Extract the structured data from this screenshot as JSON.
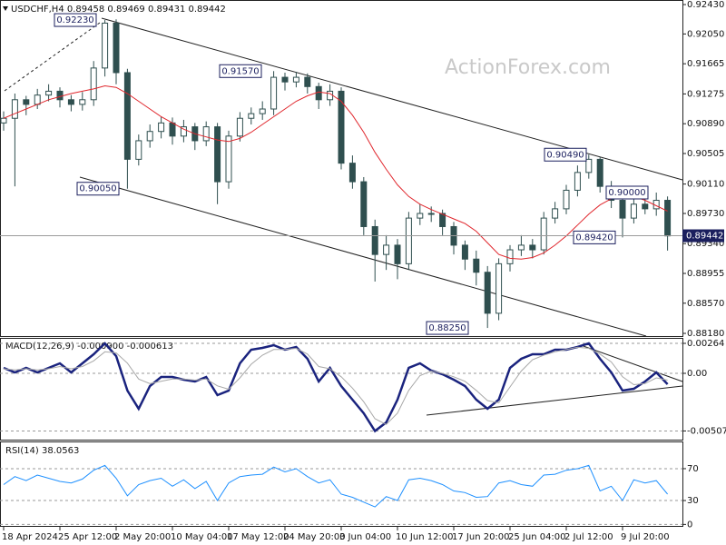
{
  "chart_data": [
    {
      "type": "candlestick",
      "symbol": "USDCHF,H4",
      "header_values": [
        0.89458,
        0.89469,
        0.89431,
        0.89442
      ],
      "watermark": "ActionForex.com",
      "color": "#2f4f4f",
      "open": [
        0.909,
        0.9096,
        0.912,
        0.9114,
        0.9126,
        0.9131,
        0.912,
        0.9114,
        0.912,
        0.9161,
        0.9219,
        0.9155,
        0.9043,
        0.9067,
        0.9079,
        0.909,
        0.9073,
        0.9085,
        0.9067,
        0.9085,
        0.9014,
        0.9073,
        0.9096,
        0.9102,
        0.9108,
        0.9149,
        0.9143,
        0.9149,
        0.9137,
        0.912,
        0.9131,
        0.9038,
        0.9014,
        0.8956,
        0.892,
        0.8932,
        0.8908,
        0.8967,
        0.8973,
        0.8973,
        0.8956,
        0.8932,
        0.8914,
        0.8897,
        0.8844,
        0.8908,
        0.8926,
        0.8932,
        0.8926,
        0.8967,
        0.8979,
        0.9003,
        0.9026,
        0.9043,
        0.9008,
        0.899,
        0.8967,
        0.8985,
        0.8979,
        0.899
      ],
      "high": [
        0.9105,
        0.9128,
        0.9125,
        0.9134,
        0.914,
        0.9136,
        0.9126,
        0.913,
        0.917,
        0.9223,
        0.9224,
        0.916,
        0.9075,
        0.9088,
        0.9098,
        0.9097,
        0.9094,
        0.909,
        0.9092,
        0.909,
        0.908,
        0.9104,
        0.911,
        0.9118,
        0.9157,
        0.9155,
        0.9156,
        0.9154,
        0.9142,
        0.914,
        0.9136,
        0.9048,
        0.902,
        0.8965,
        0.8945,
        0.894,
        0.8975,
        0.8985,
        0.8982,
        0.8978,
        0.8962,
        0.8938,
        0.8925,
        0.8905,
        0.8915,
        0.8932,
        0.8945,
        0.894,
        0.8975,
        0.8988,
        0.901,
        0.9035,
        0.9049,
        0.9046,
        0.9015,
        0.8995,
        0.8992,
        0.8998,
        0.9,
        0.8995
      ],
      "low": [
        0.908,
        0.9008,
        0.91,
        0.9108,
        0.9118,
        0.911,
        0.9105,
        0.9106,
        0.9112,
        0.915,
        0.914,
        0.9005,
        0.9035,
        0.9058,
        0.907,
        0.9062,
        0.9065,
        0.9055,
        0.906,
        0.8985,
        0.9005,
        0.9066,
        0.9088,
        0.9094,
        0.91,
        0.9132,
        0.9136,
        0.9128,
        0.9108,
        0.9112,
        0.903,
        0.9005,
        0.8945,
        0.8885,
        0.89,
        0.8888,
        0.89,
        0.8958,
        0.8962,
        0.8945,
        0.892,
        0.89,
        0.888,
        0.8825,
        0.8835,
        0.8898,
        0.8918,
        0.8915,
        0.892,
        0.896,
        0.8972,
        0.8995,
        0.9018,
        0.9,
        0.898,
        0.8942,
        0.896,
        0.8972,
        0.897,
        0.8925
      ],
      "close": [
        0.9096,
        0.912,
        0.9114,
        0.9126,
        0.9131,
        0.912,
        0.9114,
        0.912,
        0.9161,
        0.9219,
        0.9155,
        0.9043,
        0.9067,
        0.9079,
        0.909,
        0.9073,
        0.9085,
        0.9067,
        0.9085,
        0.9014,
        0.9073,
        0.9096,
        0.9102,
        0.9108,
        0.9149,
        0.9143,
        0.9149,
        0.9137,
        0.912,
        0.9131,
        0.9038,
        0.9014,
        0.8956,
        0.892,
        0.8932,
        0.8908,
        0.8967,
        0.8973,
        0.8973,
        0.8956,
        0.8932,
        0.8914,
        0.8897,
        0.8844,
        0.8908,
        0.8926,
        0.8932,
        0.8926,
        0.8967,
        0.8979,
        0.9003,
        0.9026,
        0.9043,
        0.9008,
        0.899,
        0.8967,
        0.8985,
        0.8979,
        0.899,
        0.8944
      ],
      "ma": {
        "color": "#e0262c",
        "values": [
          0.9096,
          0.9102,
          0.9108,
          0.9114,
          0.912,
          0.9124,
          0.9128,
          0.9131,
          0.9134,
          0.9138,
          0.9136,
          0.9128,
          0.9118,
          0.9108,
          0.9098,
          0.909,
          0.9082,
          0.9076,
          0.9072,
          0.9068,
          0.9066,
          0.907,
          0.9078,
          0.9088,
          0.9098,
          0.9108,
          0.9118,
          0.9125,
          0.913,
          0.9128,
          0.9118,
          0.91,
          0.9078,
          0.9052,
          0.903,
          0.901,
          0.8995,
          0.8985,
          0.8978,
          0.8972,
          0.8966,
          0.896,
          0.895,
          0.8935,
          0.892,
          0.8915,
          0.8914,
          0.8916,
          0.8922,
          0.8932,
          0.8944,
          0.8958,
          0.8972,
          0.8984,
          0.8992,
          0.8996,
          0.8995,
          0.899,
          0.8983,
          0.8976
        ]
      },
      "last_price": 0.89442,
      "levels": [
        {
          "value": 0.9223,
          "label": "0.92230"
        },
        {
          "value": 0.9157,
          "label": "0.91570"
        },
        {
          "value": 0.9005,
          "label": "0.90050"
        },
        {
          "value": 0.9049,
          "label": "0.90490"
        },
        {
          "value": 0.9,
          "label": "0.90000"
        },
        {
          "value": 0.8942,
          "label": "0.89420"
        },
        {
          "value": 0.8825,
          "label": "0.88250"
        }
      ],
      "ylim": [
        0.88145,
        0.92489
      ],
      "yticks": [
        {
          "value": 0.9243,
          "label": "0.92430"
        },
        {
          "value": 0.9205,
          "label": "0.92050"
        },
        0.91665,
        0.91275,
        {
          "value": 0.9089,
          "label": "0.90890"
        },
        0.90505,
        {
          "value": 0.9011,
          "label": "0.90110"
        },
        {
          "value": 0.8973,
          "label": "0.89730"
        },
        {
          "value": 0.8934,
          "label": "0.89340"
        },
        0.88955,
        {
          "value": 0.8857,
          "label": "0.88570"
        },
        {
          "value": 0.8818,
          "label": "0.88180"
        }
      ]
    },
    {
      "type": "line",
      "label": "MACD(12,26,9)",
      "header_values": [
        {
          "value": -0.0009,
          "label": "-0.000900"
        },
        -0.000613
      ],
      "series": [
        {
          "color": "#1a237e",
          "values": [
            0.00048,
            8e-05,
            0.00048,
            8e-05,
            0.00048,
            0.00088,
            8e-05,
            0.00088,
            0.00168,
            0.00264,
            0.00152,
            -0.00152,
            -0.00312,
            -0.00112,
            -0.00032,
            -0.00032,
            -0.00056,
            -0.00072,
            -0.00032,
            -0.00192,
            -0.00152,
            0.00088,
            0.00208,
            0.00224,
            0.00248,
            0.00208,
            0.00232,
            0.00128,
            -0.00072,
            0.00048,
            -0.00112,
            -0.00232,
            -0.00352,
            -0.00508,
            -0.00432,
            -0.00232,
            0.00048,
            0.00088,
            0.00024,
            -8e-05,
            -0.00056,
            -0.00112,
            -0.00232,
            -0.00312,
            -0.00232,
            0.00048,
            0.00128,
            0.00168,
            0.00168,
            0.00208,
            0.00208,
            0.00232,
            0.00264,
            0.00128,
            8e-05,
            -0.00152,
            -0.00136,
            -0.00072,
            8e-05,
            -0.00096
          ]
        },
        {
          "color": "#a8a8a8",
          "values": [
            0.0004,
            0.0003,
            0.0004,
            0.0003,
            0.0004,
            0.0006,
            0.0004,
            0.0006,
            0.0011,
            0.0019,
            0.0018,
            0.0009,
            -0.0005,
            -0.0009,
            -0.0007,
            -0.0005,
            -0.0005,
            -0.0006,
            -0.0005,
            -0.0011,
            -0.0014,
            -0.0004,
            0.0008,
            0.0016,
            0.0021,
            0.0021,
            0.0022,
            0.0017,
            0.0006,
            0.0004,
            -0.0003,
            -0.0013,
            -0.0025,
            -0.004,
            -0.0045,
            -0.0035,
            -0.0015,
            -0.0002,
            0.0002,
            0,
            -0.0003,
            -0.0007,
            -0.0015,
            -0.0024,
            -0.0026,
            -0.0012,
            0.0002,
            0.0012,
            0.0016,
            0.0019,
            0.0021,
            0.0023,
            0.0022,
            0.0017,
            0.001,
            -0.0003,
            -0.001,
            -0.0009,
            -0.0004,
            -0.0006
          ]
        }
      ],
      "ylim": [
        -0.00592,
        0.00304
      ],
      "yticks": [
        {
          "value": 0.00264,
          "label": "0.00264"
        },
        {
          "value": 0,
          "label": "0.00"
        },
        {
          "value": -0.005077,
          "label": "-0.005077"
        }
      ],
      "grid": true
    },
    {
      "type": "line",
      "label": "RSI(14)",
      "header_values": [
        38.0563
      ],
      "series": [
        {
          "color": "#1e90ff",
          "values": [
            50,
            60,
            55,
            62,
            58,
            54,
            52,
            57,
            68,
            74,
            58,
            36,
            50,
            55,
            58,
            48,
            56,
            45,
            54,
            30,
            52,
            60,
            62,
            63,
            72,
            66,
            70,
            60,
            52,
            56,
            38,
            34,
            28,
            22,
            35,
            30,
            56,
            58,
            55,
            50,
            42,
            40,
            34,
            35,
            52,
            55,
            50,
            48,
            62,
            63,
            68,
            70,
            74,
            42,
            48,
            30,
            56,
            52,
            55,
            38.0563
          ]
        }
      ],
      "ylim": [
        -3,
        103
      ],
      "yticks": [
        70,
        30,
        0
      ],
      "grid": true,
      "categories": [
        "18 Apr 2024",
        null,
        null,
        null,
        null,
        "25 Apr 12:00",
        null,
        null,
        null,
        null,
        "2 May 20:00",
        null,
        null,
        null,
        null,
        "10 May 04:00",
        null,
        null,
        null,
        null,
        "17 May 12:00",
        null,
        null,
        null,
        null,
        "24 May 20:00",
        null,
        null,
        null,
        null,
        "3 Jun 04:00",
        null,
        null,
        null,
        null,
        "10 Jun 12:00",
        null,
        null,
        null,
        null,
        "17 Jun 20:00",
        null,
        null,
        null,
        null,
        "25 Jun 04:00",
        null,
        null,
        null,
        null,
        "2 Jul 12:00",
        null,
        null,
        null,
        null,
        "9 Jul 20:00",
        null,
        null,
        null,
        null
      ]
    }
  ]
}
